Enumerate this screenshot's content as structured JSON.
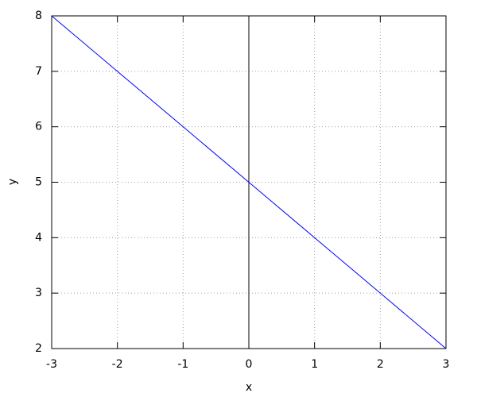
{
  "chart_data": {
    "type": "line",
    "xlabel": "x",
    "ylabel": "y",
    "x": [
      -3,
      -2,
      -1,
      0,
      1,
      2,
      3
    ],
    "values": [
      8,
      7,
      6,
      5,
      4,
      3,
      2
    ],
    "color": "#0000ff",
    "xlim": [
      -3,
      3
    ],
    "xticks": [
      -3,
      -2,
      -1,
      0,
      1,
      2,
      3
    ],
    "ylim": [
      2,
      8
    ],
    "yticks": [
      2,
      3,
      4,
      5,
      6,
      7,
      8
    ],
    "grid": true,
    "x_zero_axis": true
  }
}
